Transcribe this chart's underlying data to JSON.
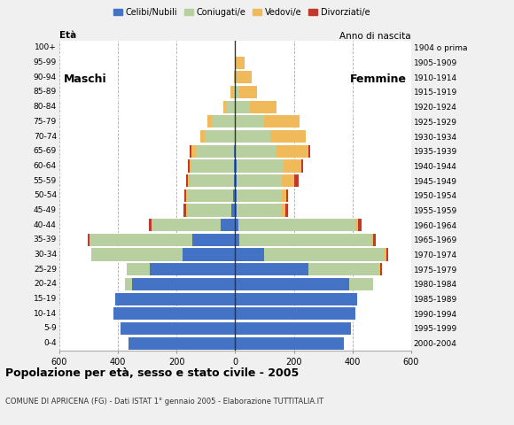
{
  "age_groups": [
    "0-4",
    "5-9",
    "10-14",
    "15-19",
    "20-24",
    "25-29",
    "30-34",
    "35-39",
    "40-44",
    "45-49",
    "50-54",
    "55-59",
    "60-64",
    "65-69",
    "70-74",
    "75-79",
    "80-84",
    "85-89",
    "90-94",
    "95-99",
    "100+"
  ],
  "birth_years": [
    "2000-2004",
    "1995-1999",
    "1990-1994",
    "1985-1989",
    "1980-1984",
    "1975-1979",
    "1970-1974",
    "1965-1969",
    "1960-1964",
    "1955-1959",
    "1950-1954",
    "1945-1949",
    "1940-1944",
    "1935-1939",
    "1930-1934",
    "1925-1929",
    "1920-1924",
    "1915-1919",
    "1910-1914",
    "1905-1909",
    "1904 o prima"
  ],
  "males": {
    "celibe": [
      365,
      390,
      415,
      410,
      350,
      290,
      180,
      145,
      50,
      12,
      8,
      5,
      5,
      5,
      0,
      0,
      0,
      0,
      0,
      0,
      0
    ],
    "coniugato": [
      0,
      0,
      0,
      0,
      25,
      80,
      310,
      350,
      235,
      150,
      155,
      150,
      145,
      130,
      105,
      80,
      30,
      8,
      2,
      0,
      0
    ],
    "vedovo": [
      0,
      0,
      0,
      0,
      0,
      0,
      0,
      0,
      0,
      5,
      5,
      5,
      5,
      15,
      15,
      15,
      10,
      8,
      3,
      0,
      0
    ],
    "divorziato": [
      0,
      0,
      0,
      0,
      0,
      0,
      0,
      8,
      8,
      8,
      5,
      8,
      5,
      5,
      0,
      0,
      0,
      0,
      0,
      0,
      0
    ]
  },
  "females": {
    "nubile": [
      370,
      395,
      410,
      415,
      390,
      250,
      100,
      15,
      10,
      5,
      5,
      5,
      5,
      0,
      0,
      0,
      0,
      0,
      0,
      0,
      0
    ],
    "coniugata": [
      0,
      0,
      0,
      0,
      80,
      240,
      410,
      450,
      400,
      155,
      155,
      155,
      160,
      140,
      120,
      100,
      50,
      15,
      5,
      2,
      0
    ],
    "vedova": [
      0,
      0,
      0,
      0,
      0,
      5,
      5,
      5,
      10,
      10,
      15,
      40,
      60,
      110,
      120,
      120,
      90,
      60,
      50,
      30,
      0
    ],
    "divorziata": [
      0,
      0,
      0,
      0,
      0,
      5,
      5,
      10,
      10,
      10,
      5,
      15,
      8,
      5,
      0,
      0,
      0,
      0,
      0,
      0,
      0
    ]
  },
  "colors": {
    "celibe": "#4472c4",
    "coniugato": "#b8cfa0",
    "vedovo": "#f0b95a",
    "divorziato": "#c0392b"
  },
  "legend_labels": [
    "Celibi/Nubili",
    "Coniugati/e",
    "Vedovi/e",
    "Divorziati/e"
  ],
  "title": "Popolazione per età, sesso e stato civile - 2005",
  "subtitle": "COMUNE DI APRICENA (FG) - Dati ISTAT 1° gennaio 2005 - Elaborazione TUTTITALIA.IT",
  "xlim": 600,
  "bg_color": "#f0f0f0",
  "plot_bg": "#ffffff"
}
